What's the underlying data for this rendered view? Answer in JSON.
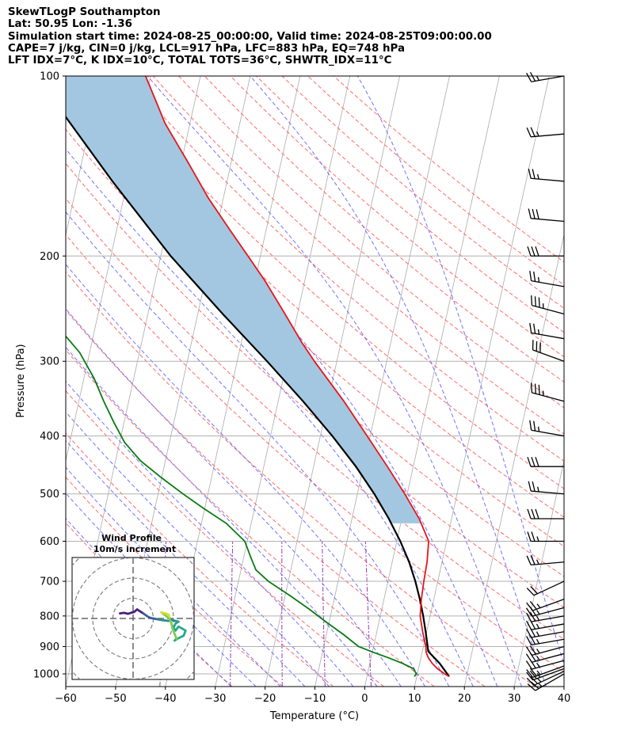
{
  "header": {
    "lines": [
      "SkewTLogP Southampton",
      "Lat: 50.95   Lon: -1.36",
      "Simulation start time: 2024-08-25_00:00:00, Valid time: 2024-08-25T09:00:00.00",
      "CAPE=7 j/kg, CIN=0 j/kg, LCL=917 hPa, LFC=883 hPa, EQ=748 hPa",
      "LFT IDX=7°C, K IDX=10°C, TOTAL TOTS=36°C, SHWTR_IDX=11°C"
    ]
  },
  "chart_data": [
    {
      "type": "line",
      "subtype": "skew-t log-p",
      "xlabel": "Temperature (°C)",
      "ylabel": "Pressure (hPa)",
      "xlim": [
        -60,
        40
      ],
      "ylim_pressure": [
        1050,
        100
      ],
      "y_scale": "log",
      "x_ticks": [
        -60,
        -50,
        -40,
        -30,
        -20,
        -10,
        0,
        10,
        20,
        30,
        40
      ],
      "x_tick_labels": [
        "−60",
        "−50",
        "−40",
        "−30",
        "−20",
        "−10",
        "0",
        "10",
        "20",
        "30",
        "40"
      ],
      "y_ticks": [
        1000,
        900,
        800,
        700,
        600,
        500,
        400,
        300,
        200,
        100
      ],
      "y_tick_labels": [
        "1000",
        "900",
        "800",
        "700",
        "600",
        "500",
        "400",
        "300",
        "200",
        "100"
      ],
      "grid": true,
      "colors": {
        "temperature": "#e8151b",
        "dewpoint": "#0a7a12",
        "parcel": "#000000",
        "cape": "#a3c7e0",
        "dry_adiabat": "#ff6a6a",
        "moist_adiabat": "#5a5aff",
        "mixing_ratio": "#9a3bb5",
        "isotherm": "#aaaaaa"
      },
      "series": [
        {
          "id": "temperature",
          "pressure": [
            1010,
            1000,
            980,
            960,
            940,
            920,
            900,
            850,
            800,
            750,
            700,
            650,
            600,
            550,
            500,
            450,
            400,
            350,
            300,
            280,
            250,
            220,
            200,
            180,
            160,
            140,
            120,
            100
          ],
          "temperature": [
            16.5,
            15.5,
            13.8,
            12.5,
            11.5,
            10.8,
            10.5,
            9.2,
            8.0,
            7.5,
            7.2,
            7.0,
            6.4,
            3.5,
            -0.5,
            -5.2,
            -10.6,
            -16.8,
            -24.5,
            -27.7,
            -32.5,
            -38.0,
            -42.5,
            -47.5,
            -53.0,
            -58.5,
            -65.0,
            -71.0
          ]
        },
        {
          "id": "dewpoint",
          "pressure": [
            1010,
            1000,
            980,
            960,
            940,
            920,
            900,
            860,
            820,
            780,
            740,
            700,
            670,
            640,
            600,
            560,
            530,
            500,
            470,
            440,
            410,
            380,
            350,
            320,
            290,
            270,
            250,
            230,
            210,
            200,
            190,
            180,
            170,
            160,
            140,
            120,
            100
          ],
          "temperature": [
            9.5,
            9.8,
            9.0,
            6.5,
            3.5,
            0.2,
            -3.0,
            -6.5,
            -10.5,
            -14.5,
            -19.0,
            -24.0,
            -27.0,
            -28.5,
            -30.5,
            -35.0,
            -40.0,
            -45.0,
            -50.0,
            -55.0,
            -59.0,
            -62.0,
            -65.0,
            -68.0,
            -72.0,
            -76.0,
            -79.0,
            -82.0,
            -85.0,
            -90.0,
            -96.0,
            -100.0,
            -102.0,
            -104.0,
            -108.0,
            -112.0,
            -116.0
          ]
        },
        {
          "id": "parcel",
          "pressure": [
            1010,
            960,
            917,
            883,
            850,
            800,
            750,
            700,
            650,
            600,
            550,
            500,
            450,
            400,
            350,
            300,
            250,
            200,
            150,
            100
          ],
          "temperature": [
            16.5,
            14.0,
            11.2,
            10.5,
            9.8,
            8.6,
            7.2,
            5.5,
            3.4,
            0.7,
            -2.6,
            -6.6,
            -11.5,
            -17.6,
            -25.0,
            -34.0,
            -45.0,
            -58.0,
            -73.0,
            -93.0
          ]
        }
      ]
    },
    {
      "type": "line",
      "subtype": "hodograph",
      "title": "Wind Profile",
      "subtitle": "10m/s increment",
      "ring_increment": 10,
      "segments": [
        {
          "u": [
            -6.5,
            -4.5,
            -2.5,
            -1.0,
            0.5,
            2.0,
            3.5,
            5.0
          ],
          "v": [
            2.5,
            2.8,
            2.3,
            2.8,
            3.2,
            4.5,
            3.5,
            2.5
          ],
          "color": "#47207a"
        },
        {
          "u": [
            5.0,
            6.5,
            7.5,
            9.0,
            11.0,
            12.5
          ],
          "v": [
            2.5,
            1.5,
            0.8,
            0.2,
            -0.2,
            -0.5
          ],
          "color": "#3a5e95"
        },
        {
          "u": [
            12.5,
            14.0,
            15.5,
            17.5,
            19.0,
            21.0,
            22.5
          ],
          "v": [
            -0.5,
            -0.8,
            -1.0,
            -1.2,
            -0.8,
            -1.2,
            -1.6
          ],
          "color": "#2a8a8d"
        },
        {
          "u": [
            22.5,
            21.0,
            20.0,
            21.0,
            22.5,
            26.0,
            25.0,
            22.0,
            20.5,
            21.5
          ],
          "v": [
            -1.6,
            -2.5,
            -4.5,
            -6.0,
            -4.0,
            -6.0,
            -8.5,
            -10.0,
            -11.0,
            -10.0
          ],
          "color": "#25a78a"
        },
        {
          "u": [
            21.5,
            20.5,
            19.5,
            19.0,
            18.0,
            16.0,
            14.0
          ],
          "v": [
            -10.0,
            -7.5,
            -5.0,
            -2.5,
            0.0,
            1.5,
            3.0
          ],
          "color": "#7fcd52"
        },
        {
          "u": [
            14.0,
            16.0,
            17.5,
            18.0
          ],
          "v": [
            3.0,
            2.5,
            2.0,
            1.0
          ],
          "color": "#d5e12a"
        }
      ]
    },
    {
      "type": "barbs",
      "pressure": [
        1000,
        990,
        980,
        970,
        950,
        925,
        900,
        875,
        850,
        825,
        800,
        775,
        750,
        700,
        650,
        600,
        550,
        500,
        450,
        400,
        350,
        300,
        275,
        250,
        225,
        200,
        175,
        150,
        125,
        100
      ],
      "wind_speed_kt": [
        25,
        25,
        25,
        25,
        25,
        25,
        25,
        25,
        25,
        25,
        25,
        25,
        25,
        20,
        25,
        25,
        30,
        25,
        30,
        25,
        35,
        30,
        25,
        35,
        25,
        30,
        30,
        25,
        25,
        25
      ],
      "wind_dir_deg": [
        240,
        245,
        250,
        250,
        255,
        255,
        255,
        260,
        260,
        260,
        260,
        255,
        250,
        245,
        265,
        270,
        270,
        275,
        270,
        280,
        285,
        290,
        280,
        285,
        280,
        270,
        275,
        275,
        265,
        260
      ]
    }
  ]
}
